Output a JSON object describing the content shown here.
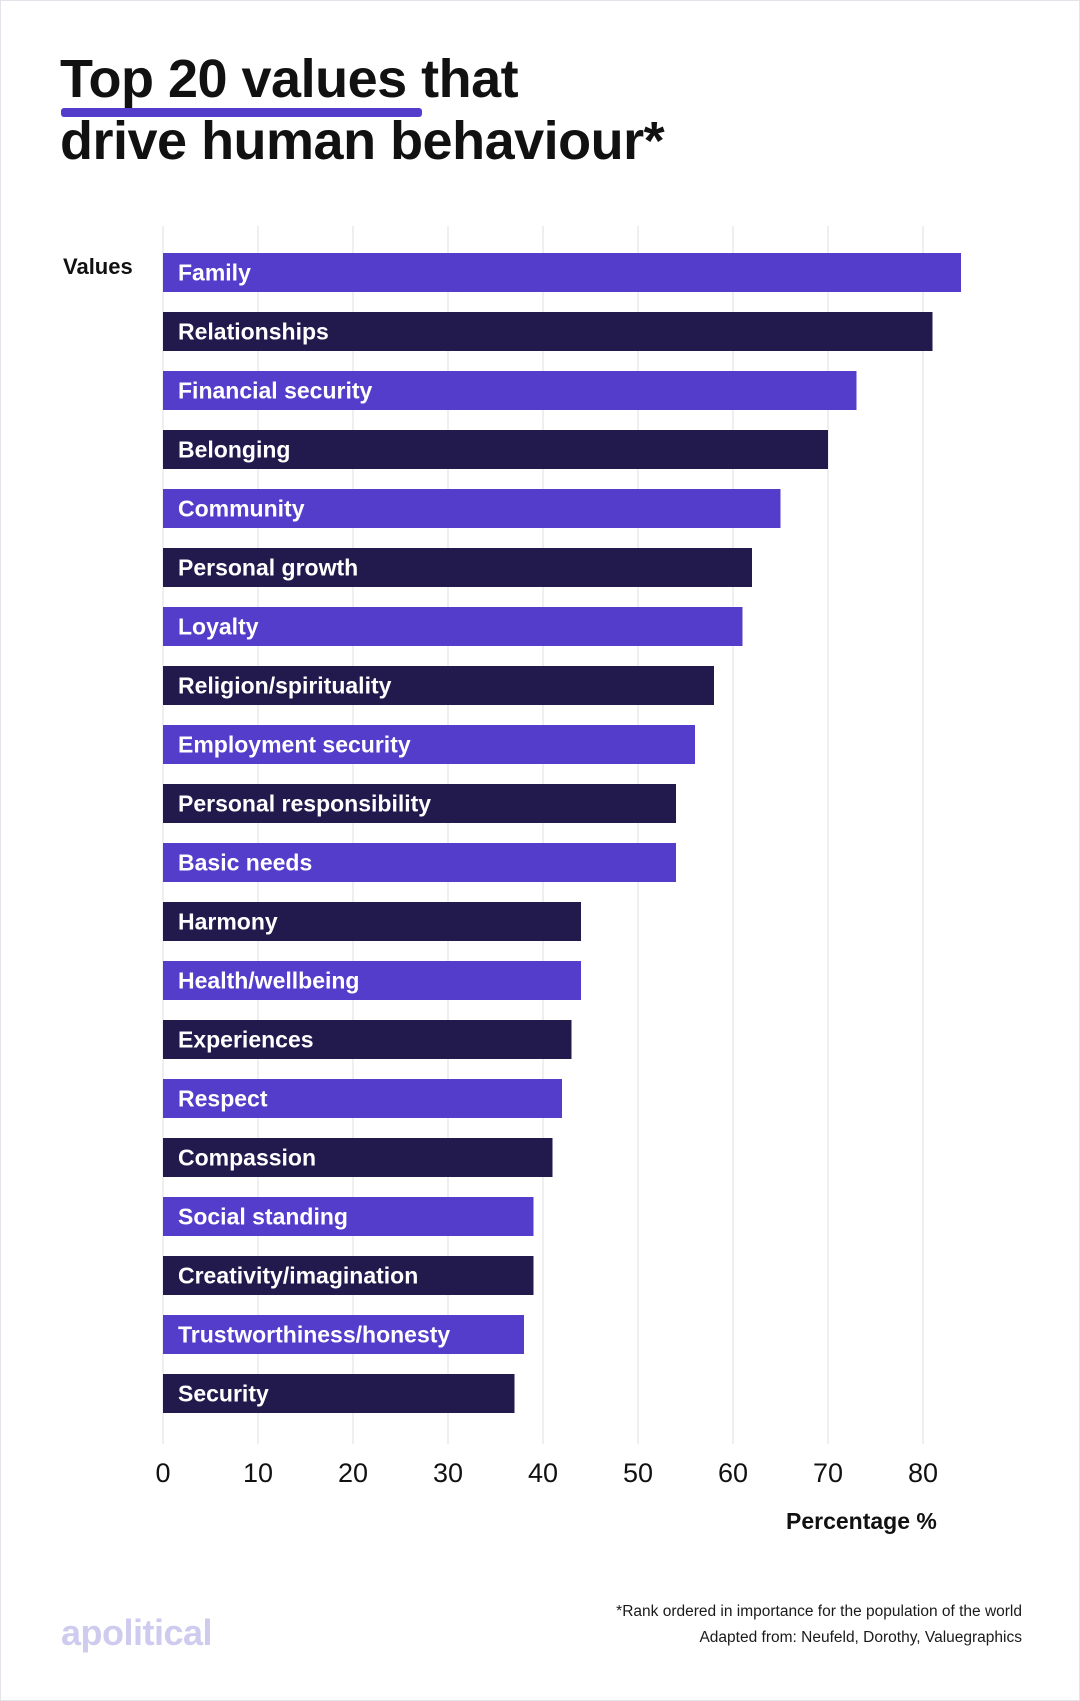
{
  "title": {
    "line1": "Top 20 values that",
    "line2": "drive human behaviour*"
  },
  "colors": {
    "bar_primary": "#543dcb",
    "bar_secondary": "#221a4d",
    "grid": "#e8e8ef",
    "logo": "#cfcbef",
    "underline": "#543dcb"
  },
  "footnote": {
    "line1": "*Rank ordered in importance for the population of the world",
    "line2": "Adapted from: Neufeld, Dorothy, Valuegraphics"
  },
  "logo_text": "apolitical",
  "chart_data": {
    "type": "bar",
    "orientation": "horizontal",
    "title": "Top 20 values that drive human behaviour*",
    "ylabel": "Values",
    "xlabel": "Percentage %",
    "xlim": [
      0,
      90
    ],
    "xticks": [
      0,
      10,
      20,
      30,
      40,
      50,
      60,
      70,
      80
    ],
    "grid": true,
    "categories": [
      "Family",
      "Relationships",
      "Financial security",
      "Belonging",
      "Community",
      "Personal growth",
      "Loyalty",
      "Religion/spirituality",
      "Employment security",
      "Personal responsibility",
      "Basic needs",
      "Harmony",
      "Health/wellbeing",
      "Experiences",
      "Respect",
      "Compassion",
      "Social standing",
      "Creativity/imagination",
      "Trustworthiness/honesty",
      "Security"
    ],
    "values": [
      84,
      81,
      73,
      70,
      65,
      62,
      61,
      58,
      56,
      54,
      54,
      44,
      44,
      43,
      42,
      41,
      39,
      39,
      38,
      37
    ]
  }
}
